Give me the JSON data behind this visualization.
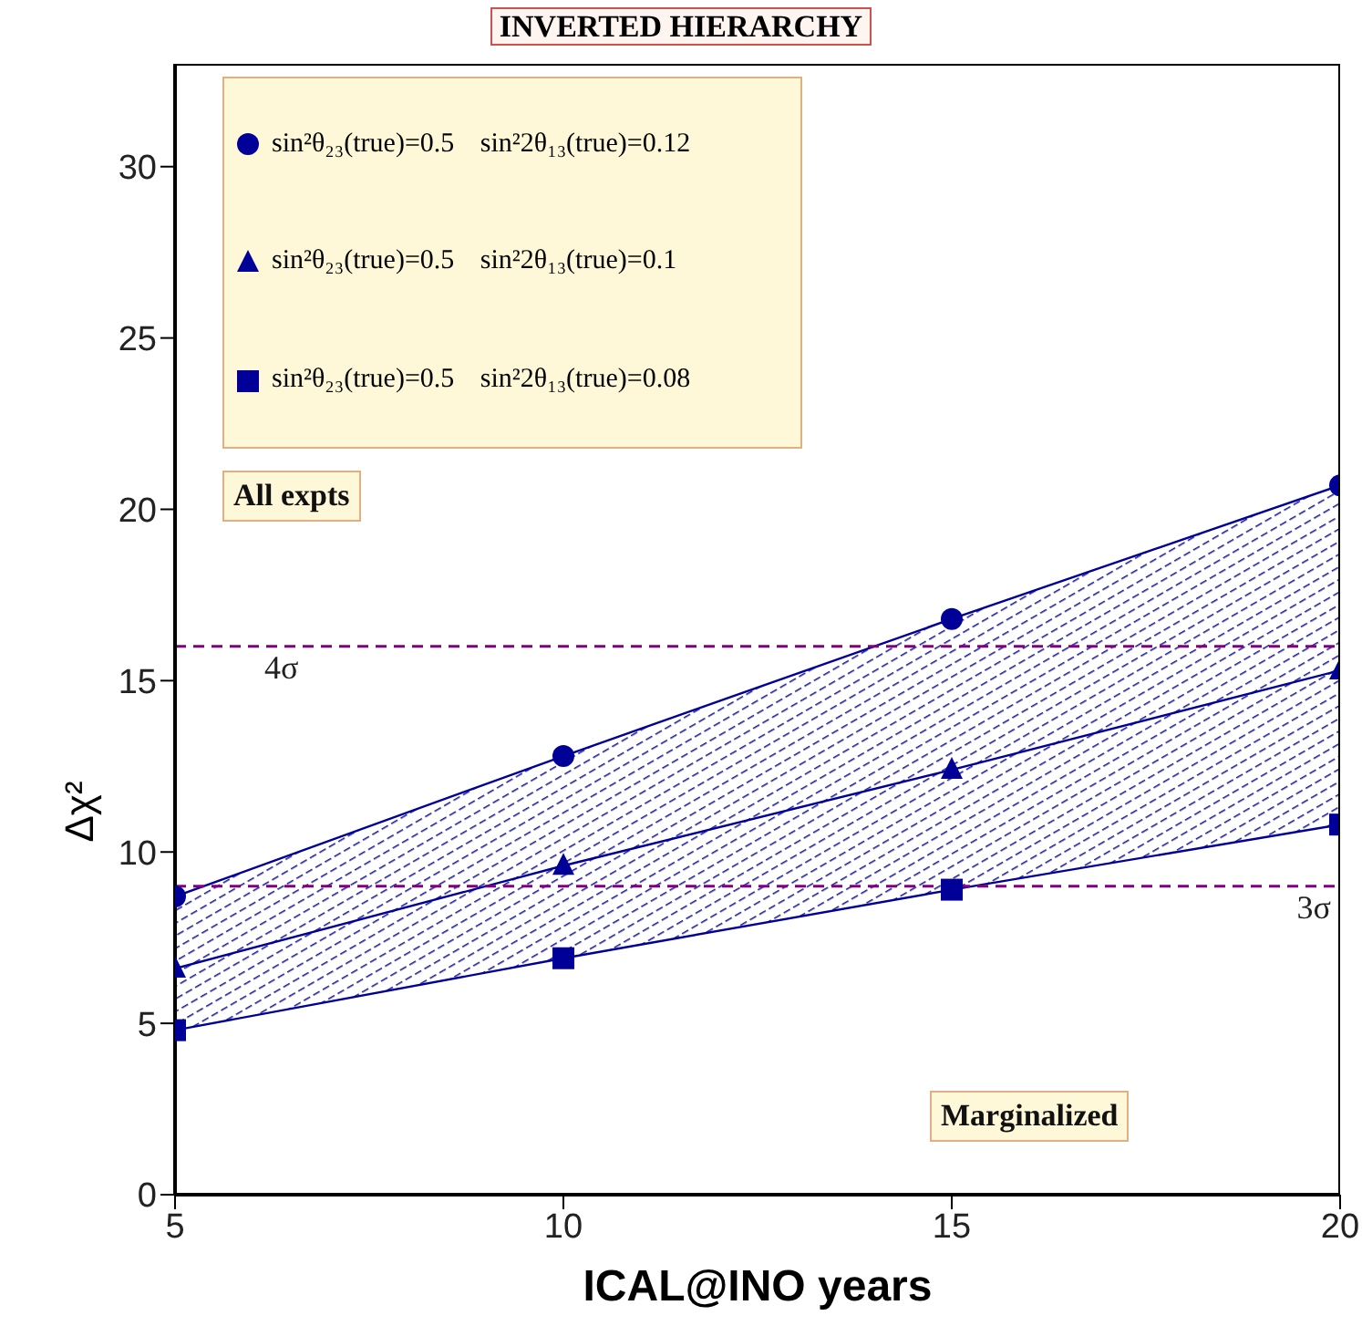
{
  "chart_data": {
    "type": "line",
    "title": "INVERTED HIERARCHY",
    "xlabel": "ICAL@INO years",
    "ylabel": "Δχ²",
    "x": [
      5,
      10,
      15,
      20
    ],
    "series": [
      {
        "name": "sin²θ₂₃(true)=0.5 sin²2θ₁₃(true)=0.12",
        "color": "#000099",
        "marker": "circle",
        "values": [
          8.7,
          12.8,
          16.8,
          20.7
        ]
      },
      {
        "name": "sin²θ₂₃(true)=0.5 sin²2θ₁₃(true)=0.1",
        "color": "#000099",
        "marker": "triangle",
        "values": [
          6.6,
          9.6,
          12.4,
          15.3
        ],
        "lower": [
          4.8,
          6.9,
          8.9,
          10.8
        ],
        "upper": [
          8.7,
          12.8,
          16.8,
          20.7
        ]
      },
      {
        "name": "sin²θ₂₃(true)=0.5 sin²2θ₁₃(true)=0.08",
        "color": "#000099",
        "marker": "square",
        "values": [
          4.8,
          6.9,
          8.9,
          10.8
        ]
      }
    ],
    "xlim": [
      5,
      20
    ],
    "xticks": [
      5,
      10,
      15,
      20
    ],
    "ylim": [
      0,
      33
    ],
    "yticks": [
      0,
      5,
      10,
      15,
      20,
      25,
      30
    ],
    "ref_lines": [
      {
        "axis": "y",
        "value": 16,
        "label": "4σ",
        "color": "#800080",
        "line_style": "dashed"
      },
      {
        "axis": "y",
        "value": 9,
        "label": "3σ",
        "color": "#800080",
        "line_style": "dashed"
      }
    ],
    "annotations": [
      "All expts",
      "Marginalized"
    ],
    "legend": "top left",
    "grid": false
  }
}
